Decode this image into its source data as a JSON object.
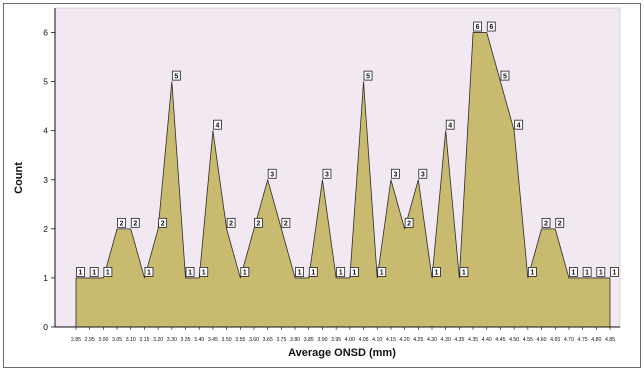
{
  "chart_data": {
    "type": "area",
    "xlabel": "Average ONSD (mm)",
    "ylabel": "Count",
    "categories": [
      "2.85",
      "2.95",
      "3.00",
      "3.05",
      "3.10",
      "3.15",
      "3.20",
      "3.30",
      "3.35",
      "3.40",
      "3.45",
      "3.50",
      "3.55",
      "3.60",
      "3.65",
      "3.75",
      "3.80",
      "3.85",
      "3.90",
      "3.95",
      "4.00",
      "4.05",
      "4.10",
      "4.15",
      "4.20",
      "4.25",
      "4.30",
      "4.30",
      "4.35",
      "4.35",
      "4.40",
      "4.45",
      "4.50",
      "4.55",
      "4.60",
      "4.65",
      "4.70",
      "4.75",
      "4.80",
      "4.85"
    ],
    "values": [
      1,
      1,
      1,
      2,
      2,
      1,
      2,
      5,
      1,
      1,
      4,
      2,
      1,
      2,
      3,
      2,
      1,
      1,
      3,
      1,
      1,
      5,
      1,
      3,
      2,
      3,
      1,
      4,
      1,
      6,
      6,
      5,
      4,
      1,
      2,
      2,
      1,
      1,
      1,
      1
    ],
    "ylim": [
      0,
      6.5
    ],
    "yticks": [
      0,
      1,
      2,
      3,
      4,
      5,
      6
    ],
    "data_labels": true,
    "grid": false,
    "colors": {
      "fill": "#c8ba6e",
      "outline": "#2b2b2b",
      "plot_background": "#f2e8f1",
      "frame": "#6b6b6b"
    }
  }
}
